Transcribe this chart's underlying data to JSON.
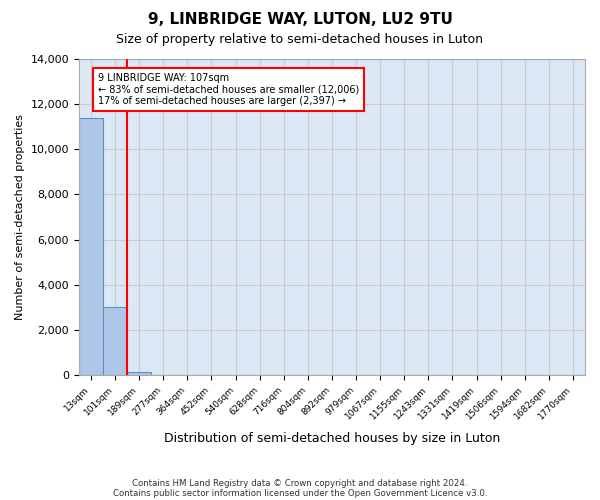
{
  "title": "9, LINBRIDGE WAY, LUTON, LU2 9TU",
  "subtitle": "Size of property relative to semi-detached houses in Luton",
  "xlabel": "Distribution of semi-detached houses by size in Luton",
  "ylabel": "Number of semi-detached properties",
  "bin_labels": [
    "13sqm",
    "101sqm",
    "189sqm",
    "277sqm",
    "364sqm",
    "452sqm",
    "540sqm",
    "628sqm",
    "716sqm",
    "804sqm",
    "892sqm",
    "979sqm",
    "1067sqm",
    "1155sqm",
    "1243sqm",
    "1331sqm",
    "1419sqm",
    "1506sqm",
    "1594sqm",
    "1682sqm",
    "1770sqm"
  ],
  "bar_values": [
    11400,
    3000,
    150,
    0,
    0,
    0,
    0,
    0,
    0,
    0,
    0,
    0,
    0,
    0,
    0,
    0,
    0,
    0,
    0,
    0,
    0
  ],
  "bar_color": "#aec6e8",
  "bar_edge_color": "#5a8fc0",
  "red_line_x": 1.5,
  "annotation_title": "9 LINBRIDGE WAY: 107sqm",
  "annotation_line1": "← 83% of semi-detached houses are smaller (12,006)",
  "annotation_line2": "17% of semi-detached houses are larger (2,397) →",
  "annotation_box_color": "white",
  "annotation_box_edge_color": "red",
  "ylim": [
    0,
    14000
  ],
  "yticks": [
    0,
    2000,
    4000,
    6000,
    8000,
    10000,
    12000,
    14000
  ],
  "grid_color": "#cccccc",
  "background_color": "#dce8f5",
  "footer_line1": "Contains HM Land Registry data © Crown copyright and database right 2024.",
  "footer_line2": "Contains public sector information licensed under the Open Government Licence v3.0."
}
